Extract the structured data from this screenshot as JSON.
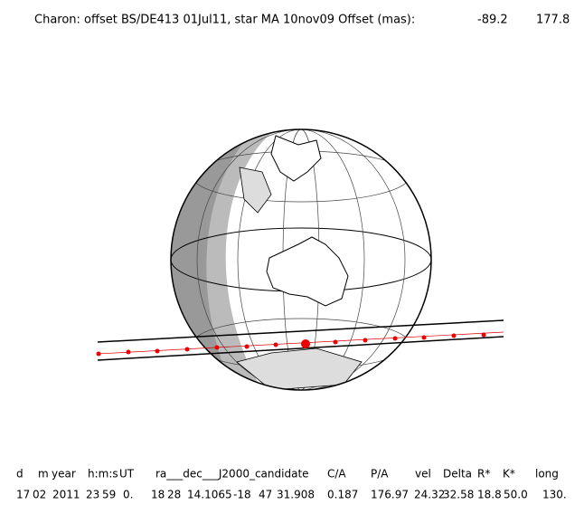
{
  "header": {
    "title": "Charon: offset BS/DE413 01Jul11, star MA 10nov09  Offset (mas):",
    "offset_x": "-89.2",
    "offset_y": "177.8"
  },
  "table": {
    "columns": [
      "d",
      "m",
      "year",
      "h:m:s",
      "UT",
      "ra___dec___J2000_candidate",
      "C/A",
      "P/A",
      "vel",
      "Delta",
      "R*",
      "K*",
      "long"
    ],
    "rows": [
      [
        "17",
        "02",
        "2011",
        "23",
        "59",
        "0.",
        "18",
        "28",
        "14.1065",
        "-18",
        "47",
        "31.908",
        "0.187",
        "176.97",
        "24.32",
        "32.58",
        "18.8",
        "50.0",
        "130."
      ]
    ]
  }
}
